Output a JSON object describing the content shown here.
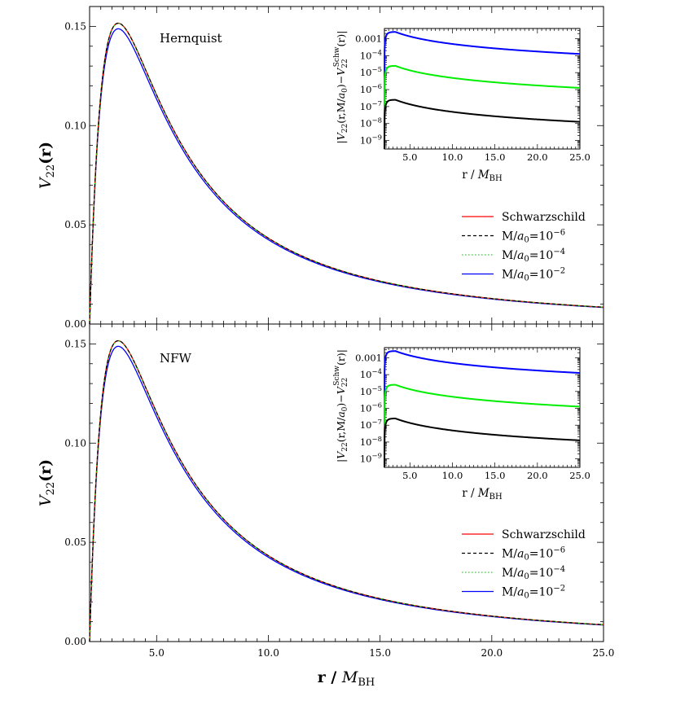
{
  "chart_data": [
    {
      "type": "line",
      "panel_title": "Hernquist",
      "ylabel_main": "V",
      "ylabel_sub": "22",
      "ylabel_tail": "(r)",
      "xlim": [
        2.0,
        25.0
      ],
      "ylim": [
        0.0,
        0.16
      ],
      "xticks": [
        5.0,
        10.0,
        15.0,
        20.0,
        25.0
      ],
      "xtick_labels": [
        "5.0",
        "10.0",
        "15.0",
        "20.0",
        "25.0"
      ],
      "yticks": [
        0.0,
        0.05,
        0.1,
        0.15
      ],
      "ytick_labels": [
        "0.00",
        "0.05",
        "0.10",
        "0.15"
      ],
      "legend": {
        "placement": "lower-right",
        "entries": [
          {
            "label": "Schwarzschild",
            "color": "#ff0000",
            "style": "solid"
          },
          {
            "label": "M/a0=10^-6",
            "label_main": "M/",
            "label_a": "a",
            "label_a_sub": "0",
            "label_eq": "=10",
            "label_sup": "−6",
            "color": "#000000",
            "style": "dashed"
          },
          {
            "label": "M/a0=10^-4",
            "label_main": "M/",
            "label_a": "a",
            "label_a_sub": "0",
            "label_eq": "=10",
            "label_sup": "−4",
            "color": "#00ee00",
            "style": "dotted"
          },
          {
            "label": "M/a0=10^-2",
            "label_main": "M/",
            "label_a": "a",
            "label_a_sub": "0",
            "label_eq": "=10",
            "label_sup": "−2",
            "color": "#0000ff",
            "style": "solid"
          }
        ]
      },
      "series": [
        {
          "name": "Schwarzschild",
          "color": "#ff0000",
          "peak_y": 0.1513
        },
        {
          "name": "M/a0=10^-6",
          "color": "#000000",
          "peak_y": 0.1513
        },
        {
          "name": "M/a0=10^-4",
          "color": "#00ee00",
          "peak_y": 0.1512
        },
        {
          "name": "M/a0=10^-2",
          "color": "#0000ff",
          "peak_y": 0.1485
        }
      ],
      "inset": {
        "type": "line",
        "yscale": "log",
        "xlim": [
          2.0,
          25.0
        ],
        "ylim_exp": [
          -9.5,
          -2.4
        ],
        "xticks": [
          5.0,
          10.0,
          15.0,
          20.0,
          25.0
        ],
        "xtick_labels": [
          "5.0",
          "10.0",
          "15.0",
          "20.0",
          "25.0"
        ],
        "ytick_labels": [
          "0.001",
          "10^-4",
          "10^-5",
          "10^-6",
          "10^-7",
          "10^-8",
          "10^-9"
        ],
        "ytick_sups": [
          "−4",
          "−5",
          "−6",
          "−7",
          "−8",
          "−9"
        ],
        "xlabel": "r / M_BH",
        "xlabel_main": "r / ",
        "xlabel_m": "M",
        "xlabel_sub": "BH",
        "ylabel": "|V22(r,M/a0)−V22^Schw(r)|",
        "series": [
          {
            "name": "M/a0=10^-2",
            "color": "#0000ff",
            "peak_log10": -2.6,
            "end_log10": -3.9
          },
          {
            "name": "M/a0=10^-4",
            "color": "#00ee00",
            "peak_log10": -4.6,
            "end_log10": -5.9
          },
          {
            "name": "M/a0=10^-6",
            "color": "#000000",
            "peak_log10": -6.6,
            "end_log10": -7.9
          }
        ]
      }
    },
    {
      "type": "line",
      "panel_title": "NFW",
      "ylabel_main": "V",
      "ylabel_sub": "22",
      "ylabel_tail": "(r)",
      "xlim": [
        2.0,
        25.0
      ],
      "ylim": [
        0.0,
        0.16
      ],
      "xticks": [
        5.0,
        10.0,
        15.0,
        20.0,
        25.0
      ],
      "xtick_labels": [
        "5.0",
        "10.0",
        "15.0",
        "20.0",
        "25.0"
      ],
      "yticks": [
        0.0,
        0.05,
        0.1,
        0.15
      ],
      "ytick_labels": [
        "0.00",
        "0.05",
        "0.10",
        "0.15"
      ],
      "legend": {
        "placement": "lower-right",
        "entries": [
          {
            "label": "Schwarzschild",
            "color": "#ff0000",
            "style": "solid"
          },
          {
            "label": "M/a0=10^-6",
            "label_main": "M/",
            "label_a": "a",
            "label_a_sub": "0",
            "label_eq": "=10",
            "label_sup": "−6",
            "color": "#000000",
            "style": "dashed"
          },
          {
            "label": "M/a0=10^-4",
            "label_main": "M/",
            "label_a": "a",
            "label_a_sub": "0",
            "label_eq": "=10",
            "label_sup": "−4",
            "color": "#00ee00",
            "style": "dotted"
          },
          {
            "label": "M/a0=10^-2",
            "label_main": "M/",
            "label_a": "a",
            "label_a_sub": "0",
            "label_eq": "=10",
            "label_sup": "−2",
            "color": "#0000ff",
            "style": "solid"
          }
        ]
      },
      "series": [
        {
          "name": "Schwarzschild",
          "color": "#ff0000",
          "peak_y": 0.1513
        },
        {
          "name": "M/a0=10^-6",
          "color": "#000000",
          "peak_y": 0.1513
        },
        {
          "name": "M/a0=10^-4",
          "color": "#00ee00",
          "peak_y": 0.1512
        },
        {
          "name": "M/a0=10^-2",
          "color": "#0000ff",
          "peak_y": 0.1485
        }
      ],
      "inset": {
        "type": "line",
        "yscale": "log",
        "xlim": [
          2.0,
          25.0
        ],
        "ylim_exp": [
          -9.5,
          -2.4
        ],
        "xticks": [
          5.0,
          10.0,
          15.0,
          20.0,
          25.0
        ],
        "xtick_labels": [
          "5.0",
          "10.0",
          "15.0",
          "20.0",
          "25.0"
        ],
        "ytick_labels": [
          "0.001",
          "10^-4",
          "10^-5",
          "10^-6",
          "10^-7",
          "10^-8",
          "10^-9"
        ],
        "ytick_sups": [
          "−4",
          "−5",
          "−6",
          "−7",
          "−8",
          "−9"
        ],
        "xlabel": "r / M_BH",
        "xlabel_main": "r / ",
        "xlabel_m": "M",
        "xlabel_sub": "BH",
        "ylabel": "|V22(r,M/a0)−V22^Schw(r)|",
        "series": [
          {
            "name": "M/a0=10^-2",
            "color": "#0000ff",
            "peak_log10": -2.6,
            "end_log10": -3.9
          },
          {
            "name": "M/a0=10^-4",
            "color": "#00ee00",
            "peak_log10": -4.6,
            "end_log10": -5.9
          },
          {
            "name": "M/a0=10^-6",
            "color": "#000000",
            "peak_log10": -6.6,
            "end_log10": -7.9
          }
        ]
      }
    }
  ],
  "shared_xlabel_main": "r / ",
  "shared_xlabel_m": "M",
  "shared_xlabel_sub": "BH"
}
